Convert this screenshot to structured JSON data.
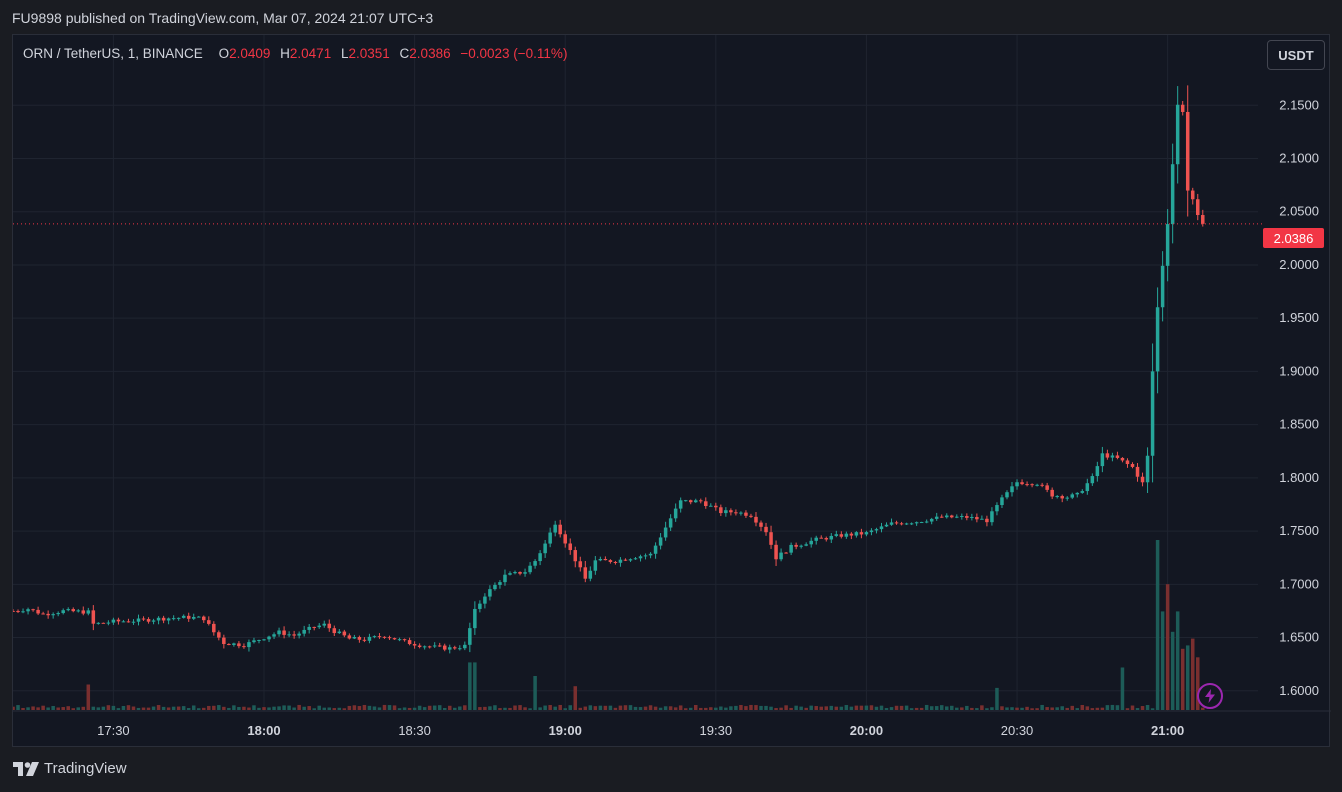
{
  "header": {
    "publish_line": "FU9898 published on TradingView.com, Mar 07, 2024 21:07 UTC+3"
  },
  "legend": {
    "symbol": "ORN / TetherUS, 1, BINANCE",
    "open_label": "O",
    "open": "2.0409",
    "high_label": "H",
    "high": "2.0471",
    "low_label": "L",
    "low": "2.0351",
    "close_label": "C",
    "close": "2.0386",
    "change": "−0.0023 (−0.11%)"
  },
  "toolbar": {
    "currency_label": "USDT"
  },
  "brand": {
    "label": "TradingView",
    "logo_icon": "tradingview-logo-icon"
  },
  "colors": {
    "up": "#26a69a",
    "down": "#ef5350",
    "grid": "#1f2430",
    "axis_text": "#d1d4dc",
    "price_line": "#f23645",
    "volume_up": "#1d5c58",
    "volume_down": "#7a2f2f"
  },
  "chart_data": {
    "type": "candlestick",
    "interval_minutes": 1,
    "symbol": "ORN / TetherUS",
    "exchange": "BINANCE",
    "y_axis": {
      "range": [
        1.581,
        2.216
      ],
      "ticks": [
        "1.6000",
        "1.6500",
        "1.7000",
        "1.7500",
        "1.8000",
        "1.8500",
        "1.9000",
        "1.9500",
        "2.0000",
        "2.0500",
        "2.1000",
        "2.1500"
      ]
    },
    "x_axis": {
      "range": [
        "17:10",
        "21:18"
      ],
      "ticks": [
        {
          "time": "17:30",
          "label": "17:30",
          "bold": false
        },
        {
          "time": "18:00",
          "label": "18:00",
          "bold": true
        },
        {
          "time": "18:30",
          "label": "18:30",
          "bold": false
        },
        {
          "time": "19:00",
          "label": "19:00",
          "bold": true
        },
        {
          "time": "19:30",
          "label": "19:30",
          "bold": false
        },
        {
          "time": "20:00",
          "label": "20:00",
          "bold": true
        },
        {
          "time": "20:30",
          "label": "20:30",
          "bold": false
        },
        {
          "time": "21:00",
          "label": "21:00",
          "bold": true
        }
      ]
    },
    "last_price": "2.0386",
    "price_series": [
      [
        "17:10",
        1.675
      ],
      [
        "17:13",
        1.677
      ],
      [
        "17:16",
        1.672
      ],
      [
        "17:20",
        1.675
      ],
      [
        "17:25",
        1.674
      ],
      [
        "17:25",
        1.662
      ],
      [
        "17:30",
        1.665
      ],
      [
        "17:35",
        1.666
      ],
      [
        "17:40",
        1.668
      ],
      [
        "17:45",
        1.669
      ],
      [
        "17:48",
        1.668
      ],
      [
        "17:50",
        1.655
      ],
      [
        "17:52",
        1.645
      ],
      [
        "17:56",
        1.643
      ],
      [
        "18:00",
        1.65
      ],
      [
        "18:03",
        1.655
      ],
      [
        "18:06",
        1.652
      ],
      [
        "18:10",
        1.66
      ],
      [
        "18:12",
        1.662
      ],
      [
        "18:14",
        1.656
      ],
      [
        "18:17",
        1.649
      ],
      [
        "18:20",
        1.648
      ],
      [
        "18:24",
        1.652
      ],
      [
        "18:28",
        1.646
      ],
      [
        "18:31",
        1.643
      ],
      [
        "18:34",
        1.641
      ],
      [
        "18:37",
        1.64
      ],
      [
        "18:40",
        1.642
      ],
      [
        "18:42",
        1.675
      ],
      [
        "18:44",
        1.69
      ],
      [
        "18:48",
        1.708
      ],
      [
        "18:52",
        1.712
      ],
      [
        "18:54",
        1.722
      ],
      [
        "18:56",
        1.738
      ],
      [
        "18:58",
        1.758
      ],
      [
        "19:00",
        1.74
      ],
      [
        "19:02",
        1.723
      ],
      [
        "19:04",
        1.705
      ],
      [
        "19:06",
        1.722
      ],
      [
        "19:10",
        1.722
      ],
      [
        "19:14",
        1.726
      ],
      [
        "19:17",
        1.728
      ],
      [
        "19:19",
        1.745
      ],
      [
        "19:21",
        1.762
      ],
      [
        "19:23",
        1.778
      ],
      [
        "19:27",
        1.778
      ],
      [
        "19:31",
        1.768
      ],
      [
        "19:34",
        1.768
      ],
      [
        "19:37",
        1.765
      ],
      [
        "19:40",
        1.75
      ],
      [
        "19:42",
        1.725
      ],
      [
        "19:45",
        1.735
      ],
      [
        "19:50",
        1.742
      ],
      [
        "19:55",
        1.746
      ],
      [
        "20:00",
        1.748
      ],
      [
        "20:05",
        1.757
      ],
      [
        "20:10",
        1.759
      ],
      [
        "20:15",
        1.763
      ],
      [
        "20:20",
        1.763
      ],
      [
        "20:24",
        1.76
      ],
      [
        "20:27",
        1.78
      ],
      [
        "20:30",
        1.796
      ],
      [
        "20:34",
        1.795
      ],
      [
        "20:37",
        1.784
      ],
      [
        "20:40",
        1.782
      ],
      [
        "20:42",
        1.784
      ],
      [
        "20:45",
        1.8
      ],
      [
        "20:47",
        1.822
      ],
      [
        "20:50",
        1.818
      ],
      [
        "20:53",
        1.81
      ],
      [
        "20:55",
        1.795
      ],
      [
        "20:56",
        1.82
      ],
      [
        "20:57",
        1.9
      ],
      [
        "20:58",
        1.96
      ],
      [
        "20:59",
        2.0
      ],
      [
        "21:00",
        2.04
      ],
      [
        "21:02",
        2.15
      ],
      [
        "21:03",
        2.145
      ],
      [
        "21:04",
        2.07
      ],
      [
        "21:05",
        2.06
      ],
      [
        "21:06",
        2.045
      ],
      [
        "21:07",
        2.0386
      ]
    ],
    "volume_spikes": [
      {
        "time": "17:25",
        "relative": 0.15,
        "direction": "down"
      },
      {
        "time": "18:41",
        "relative": 0.28,
        "direction": "up"
      },
      {
        "time": "18:42",
        "relative": 0.28,
        "direction": "up"
      },
      {
        "time": "18:54",
        "relative": 0.2,
        "direction": "up"
      },
      {
        "time": "19:02",
        "relative": 0.14,
        "direction": "down"
      },
      {
        "time": "20:26",
        "relative": 0.13,
        "direction": "up"
      },
      {
        "time": "20:51",
        "relative": 0.25,
        "direction": "up"
      },
      {
        "time": "20:58",
        "relative": 1.0,
        "direction": "up"
      },
      {
        "time": "20:59",
        "relative": 0.58,
        "direction": "up"
      },
      {
        "time": "21:00",
        "relative": 0.74,
        "direction": "down"
      },
      {
        "time": "21:01",
        "relative": 0.46,
        "direction": "up"
      },
      {
        "time": "21:02",
        "relative": 0.58,
        "direction": "up"
      },
      {
        "time": "21:03",
        "relative": 0.36,
        "direction": "down"
      },
      {
        "time": "21:04",
        "relative": 0.38,
        "direction": "up"
      },
      {
        "time": "21:05",
        "relative": 0.42,
        "direction": "down"
      },
      {
        "time": "21:06",
        "relative": 0.31,
        "direction": "down"
      }
    ]
  }
}
